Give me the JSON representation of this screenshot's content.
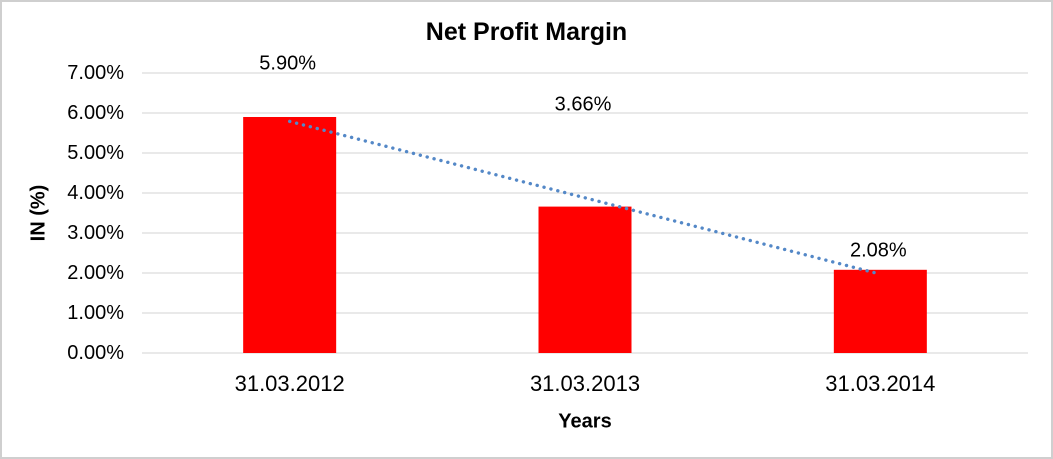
{
  "chart_data": {
    "type": "bar",
    "title": "Net Profit Margin",
    "xlabel": "Years",
    "ylabel": "IN (%)",
    "categories": [
      "31.03.2012",
      "31.03.2013",
      "31.03.2014"
    ],
    "values": [
      5.9,
      3.66,
      2.08
    ],
    "data_labels": [
      "5.90%",
      "3.66%",
      "2.08%"
    ],
    "ylim": [
      0,
      7
    ],
    "ytick_values": [
      7,
      6,
      5,
      4,
      3,
      2,
      1,
      0
    ],
    "ytick_labels": [
      "7.00%",
      "6.00%",
      "5.00%",
      "4.00%",
      "3.00%",
      "2.00%",
      "1.00%",
      "0.00%"
    ],
    "grid": true,
    "legend": "none",
    "bar_color": "#ff0000",
    "gridline_color": "#d3d3d3",
    "text_color": "#000000",
    "background": "#ffffff",
    "trendline": {
      "type": "linear",
      "style": "dotted",
      "color": "#5488c7"
    }
  }
}
